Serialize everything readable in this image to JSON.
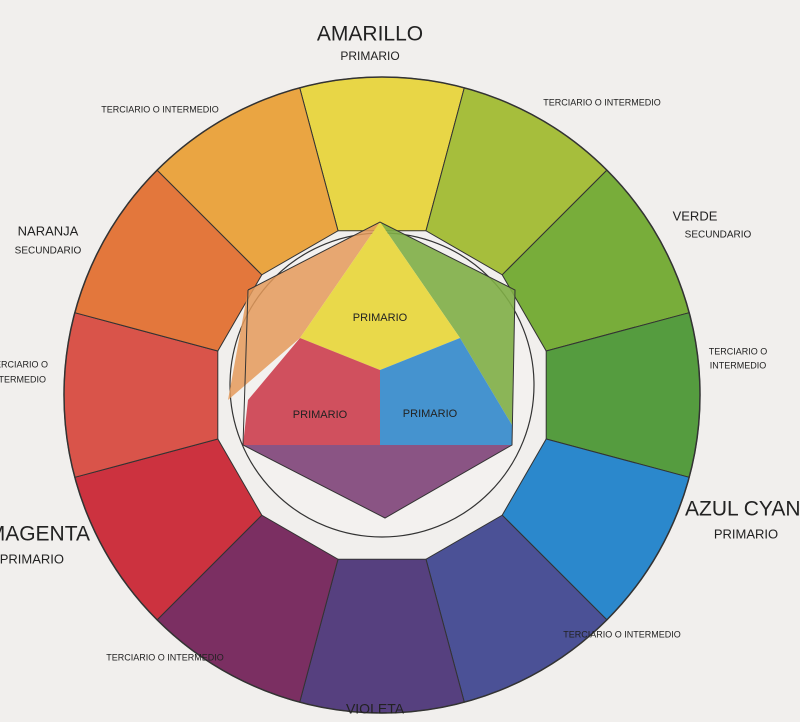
{
  "outer_labels": [
    {
      "lines": [
        "AMARILLO",
        "PRIMARIO"
      ]
    },
    {
      "lines": [
        "TERCIARIO O INTERMEDIO"
      ]
    },
    {
      "lines": [
        "TERCIARIO O INTERMEDIO"
      ]
    },
    {
      "lines": [
        "NARANJA",
        "SECUNDARIO"
      ]
    },
    {
      "lines": [
        "VERDE",
        "SECUNDARIO"
      ]
    },
    {
      "lines": [
        "TERCIARIO O",
        "INTERMEDIO"
      ]
    },
    {
      "lines": [
        "TERCIARIO O",
        "INTERMEDIO"
      ]
    },
    {
      "lines": [
        "MAGENTA",
        "PRIMARIO"
      ]
    },
    {
      "lines": [
        "AZUL CYAN",
        "PRIMARIO"
      ]
    },
    {
      "lines": [
        "TERCIARIO O INTERMEDIO"
      ]
    },
    {
      "lines": [
        "TERCIARIO O INTERMEDIO"
      ]
    },
    {
      "lines": [
        "VIOLETA"
      ]
    }
  ],
  "inner_labels": [
    "PRIMARIO",
    "PRIMARIO",
    "PRIMARIO"
  ]
}
